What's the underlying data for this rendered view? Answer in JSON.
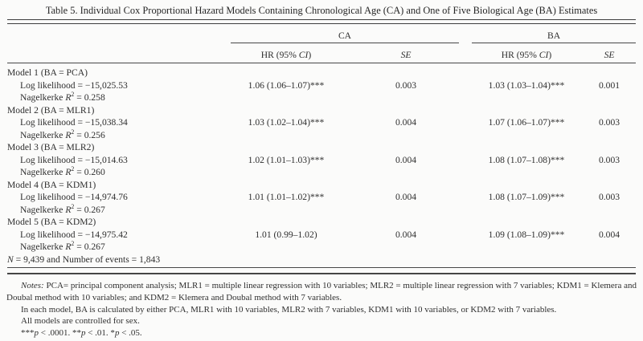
{
  "title": "Table 5.  Individual Cox Proportional Hazard Models Containing Chronological Age (CA) and One of Five Biological Age (BA) Estimates",
  "table": {
    "col_groups": [
      {
        "label": "CA"
      },
      {
        "label": "BA"
      }
    ],
    "sub_headers": [
      "HR (95% {i}CI{/i})",
      "{i}SE{/i}",
      "HR (95% {i}CI{/i})",
      "{i}SE{/i}"
    ],
    "rows": [
      {
        "type": "model",
        "label": "Model 1 (BA = PCA)"
      },
      {
        "type": "data",
        "label": "Log likelihood = −15,025.53",
        "ca_hr": "1.06 (1.06–1.07)***",
        "ca_se": "0.003",
        "ba_hr": "1.03 (1.03–1.04)***",
        "ba_se": "0.001"
      },
      {
        "type": "sub",
        "label": "Nagelkerke {i}R{/i}{sup}2{/sup} = 0.258"
      },
      {
        "type": "model",
        "label": "Model 2 (BA = MLR1)"
      },
      {
        "type": "data",
        "label": "Log likelihood = −15,038.34",
        "ca_hr": "1.03 (1.02–1.04)***",
        "ca_se": "0.004",
        "ba_hr": "1.07 (1.06–1.07)***",
        "ba_se": "0.003"
      },
      {
        "type": "sub",
        "label": "Nagelkerke {i}R{/i}{sup}2{/sup} = 0.256"
      },
      {
        "type": "model",
        "label": "Model 3 (BA = MLR2)"
      },
      {
        "type": "data",
        "label": "Log likelihood = −15,014.63",
        "ca_hr": "1.02 (1.01–1.03)***",
        "ca_se": "0.004",
        "ba_hr": "1.08 (1.07–1.08)***",
        "ba_se": "0.003"
      },
      {
        "type": "sub",
        "label": "Nagelkerke {i}R{/i}{sup}2{/sup} = 0.260"
      },
      {
        "type": "model",
        "label": "Model 4 (BA = KDM1)"
      },
      {
        "type": "data",
        "label": "Log likelihood = −14,974.76",
        "ca_hr": "1.01 (1.01–1.02)***",
        "ca_se": "0.004",
        "ba_hr": "1.08 (1.07–1.09)***",
        "ba_se": "0.003"
      },
      {
        "type": "sub",
        "label": "Nagelkerke {i}R{/i}{sup}2{/sup} = 0.267"
      },
      {
        "type": "model",
        "label": "Model 5 (BA = KDM2)"
      },
      {
        "type": "data",
        "label": "Log likelihood = −14,975.42",
        "ca_hr": "1.01 (0.99–1.02)",
        "ca_se": "0.004",
        "ba_hr": "1.09 (1.08–1.09)***",
        "ba_se": "0.004"
      },
      {
        "type": "sub",
        "label": "Nagelkerke {i}R{/i}{sup}2{/sup} = 0.267"
      },
      {
        "type": "footer",
        "label": "{i}N{/i} = 9,439 and Number of events = 1,843"
      }
    ]
  },
  "notes": {
    "lines": [
      "{i}Notes:{/i} PCA= principal component analysis; MLR1 = multiple linear regression with 10 variables; MLR2 = multiple linear regression with 7 variables; KDM1 = Klemera and Doubal method with 10 variables; and KDM2 = Klemera and Doubal method with 7 variables.",
      "In each model, BA is calculated by either PCA, MLR1 with 10 variables, MLR2 with 7 variables, KDM1 with 10 variables, or KDM2 with 7 variables.",
      "All models are controlled for sex.",
      "***{i}p{/i} < .0001. **{i}p{/i} < .01. *{i}p{/i} < .05."
    ]
  },
  "colors": {
    "rule": "#474747",
    "text": "#2e2e2e",
    "background": "#fbfbfa"
  }
}
